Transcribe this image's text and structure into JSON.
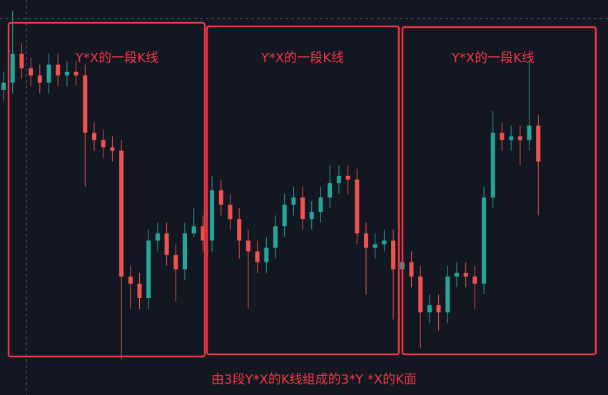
{
  "chart_data": {
    "type": "candlestick",
    "candles": [
      [
        85,
        90,
        82,
        87
      ],
      [
        87,
        107,
        84,
        95
      ],
      [
        95,
        98,
        88,
        91
      ],
      [
        91,
        94,
        86,
        89
      ],
      [
        89,
        92,
        84,
        87
      ],
      [
        87,
        95,
        84,
        92
      ],
      [
        92,
        95,
        86,
        89
      ],
      [
        89,
        93,
        86,
        90
      ],
      [
        90,
        93,
        86,
        89
      ],
      [
        89,
        92,
        58,
        73
      ],
      [
        73,
        76,
        68,
        71
      ],
      [
        71,
        74,
        66,
        69
      ],
      [
        69,
        72,
        65,
        68
      ],
      [
        68,
        71,
        10,
        33
      ],
      [
        33,
        36,
        24,
        31
      ],
      [
        31,
        34,
        24,
        27
      ],
      [
        27,
        46,
        24,
        43
      ],
      [
        43,
        48,
        40,
        45
      ],
      [
        45,
        48,
        36,
        39
      ],
      [
        39,
        42,
        26,
        35
      ],
      [
        35,
        48,
        32,
        45
      ],
      [
        45,
        52,
        44,
        47
      ],
      [
        47,
        50,
        40,
        43
      ],
      [
        43,
        61,
        40,
        57
      ],
      [
        57,
        60,
        50,
        53
      ],
      [
        53,
        56,
        46,
        49
      ],
      [
        49,
        52,
        38,
        43
      ],
      [
        43,
        46,
        24,
        40
      ],
      [
        40,
        43,
        34,
        37
      ],
      [
        37,
        44,
        34,
        41
      ],
      [
        41,
        50,
        38,
        47
      ],
      [
        47,
        56,
        44,
        53
      ],
      [
        53,
        58,
        50,
        55
      ],
      [
        55,
        58,
        46,
        49
      ],
      [
        49,
        54,
        46,
        51
      ],
      [
        51,
        58,
        48,
        55
      ],
      [
        55,
        64,
        52,
        59
      ],
      [
        59,
        64,
        56,
        61
      ],
      [
        61,
        64,
        56,
        60
      ],
      [
        60,
        63,
        42,
        45
      ],
      [
        45,
        48,
        28,
        41
      ],
      [
        41,
        45,
        38,
        42
      ],
      [
        42,
        46,
        40,
        43
      ],
      [
        43,
        46,
        21,
        35
      ],
      [
        35,
        40,
        32,
        37
      ],
      [
        37,
        40,
        30,
        33
      ],
      [
        33,
        36,
        13,
        23
      ],
      [
        23,
        28,
        20,
        25
      ],
      [
        25,
        28,
        18,
        23
      ],
      [
        23,
        36,
        20,
        33
      ],
      [
        33,
        37,
        30,
        34
      ],
      [
        34,
        37,
        30,
        33
      ],
      [
        33,
        36,
        24,
        31
      ],
      [
        31,
        58,
        28,
        55
      ],
      [
        55,
        79,
        52,
        73
      ],
      [
        73,
        76,
        68,
        71
      ],
      [
        71,
        75,
        68,
        72
      ],
      [
        72,
        75,
        64,
        71
      ],
      [
        71,
        93,
        68,
        75
      ],
      [
        75,
        78,
        50,
        65
      ]
    ],
    "ylim": [
      0,
      110
    ],
    "up_color": "#26a69a",
    "down_color": "#ef5350",
    "box_labels": [
      "Y*X的一段K线",
      "Y*X的一段K线",
      "Y*X的一段K线"
    ],
    "caption": "由3段Y*X的K线组成的3*Y *X的K面"
  }
}
